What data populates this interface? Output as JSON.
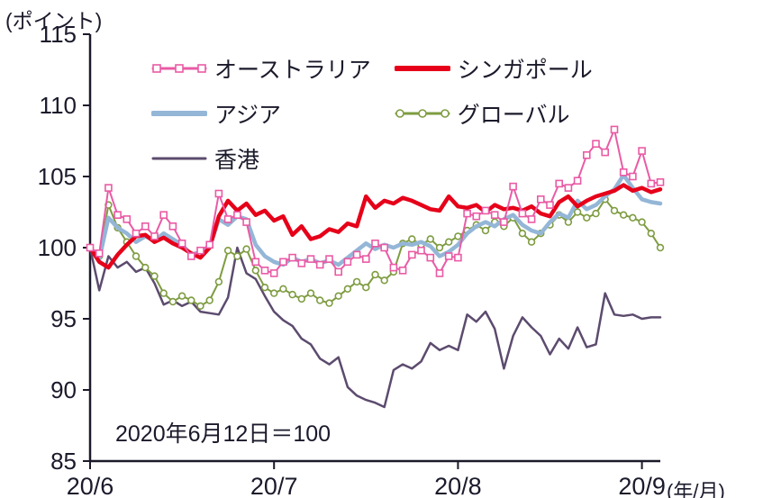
{
  "chart_data": {
    "type": "line",
    "y_unit_label": "(ポイント)",
    "x_unit_label": "(年/月)",
    "annotation": "2020年6月12日＝100",
    "ylim": [
      85,
      115
    ],
    "yticks": [
      85,
      90,
      95,
      100,
      105,
      110,
      115
    ],
    "xticks": [
      {
        "label": "20/6",
        "index": 0
      },
      {
        "label": "20/7",
        "index": 20
      },
      {
        "label": "20/8",
        "index": 40
      },
      {
        "label": "20/9",
        "index": 60
      }
    ],
    "axis_color": "#1a1a2b",
    "text_color": "#1a1a2b",
    "draw_order": [
      4,
      3,
      2,
      1,
      0
    ],
    "series": [
      {
        "name": "オーストラリア",
        "color": "#e95ba5",
        "marker": "square",
        "line_width": 2,
        "values": [
          100,
          99.6,
          104.2,
          102.3,
          102,
          101,
          101.5,
          100.8,
          102.3,
          101.5,
          100.3,
          99.4,
          99.8,
          100.2,
          103.8,
          102,
          102.3,
          101.8,
          99,
          98.4,
          98.2,
          99,
          99.3,
          98.9,
          99.2,
          98.8,
          99.2,
          98.3,
          99,
          99.5,
          99.2,
          100.3,
          100,
          98.6,
          98.4,
          99.5,
          99.8,
          99.3,
          98.2,
          99.4,
          99.3,
          102.4,
          102.2,
          102.6,
          102.3,
          101.8,
          104.3,
          102.4,
          102,
          103.4,
          103,
          104.5,
          104.2,
          104.7,
          106.5,
          107.3,
          106.7,
          108.3,
          105.3,
          105,
          106.8,
          104.5,
          104.6
        ]
      },
      {
        "name": "シンガポール",
        "color": "#e60019",
        "marker": "none",
        "line_width": 4.5,
        "values": [
          100,
          99,
          98.6,
          99.5,
          100.2,
          100.8,
          100.9,
          100.4,
          100.7,
          100.3,
          100,
          99.6,
          99.3,
          100,
          102.2,
          103.3,
          102.6,
          103.1,
          102.3,
          102.6,
          101.9,
          102.2,
          100.9,
          101.5,
          100.6,
          100.8,
          101.3,
          101.1,
          101.7,
          101.5,
          103.6,
          102.8,
          103.3,
          103.1,
          103.5,
          103.3,
          103,
          102.7,
          102.6,
          103.6,
          102.9,
          102.8,
          103,
          102.5,
          103,
          102.7,
          102.8,
          102.6,
          102.9,
          102.4,
          102.2,
          103.2,
          103.6,
          102.9,
          103.3,
          103.6,
          103.8,
          104,
          104.4,
          104,
          104.2,
          103.9,
          104.1
        ]
      },
      {
        "name": "アジア",
        "color": "#94b6d7",
        "marker": "none",
        "line_width": 4.5,
        "values": [
          100,
          99.2,
          102.1,
          101.4,
          101,
          100.4,
          100.8,
          100.5,
          101,
          100.6,
          100.2,
          99.5,
          99.7,
          100,
          102,
          101.6,
          102.2,
          102,
          100.2,
          99.4,
          99,
          98.8,
          99.3,
          99,
          99.2,
          98.9,
          99.1,
          98.8,
          99.3,
          99.8,
          100.3,
          99.9,
          100.2,
          100,
          100.3,
          100.2,
          100.4,
          100.1,
          99.4,
          99.7,
          100.2,
          101,
          101.5,
          101.8,
          101.5,
          102,
          102.3,
          101.6,
          101.2,
          101,
          101.8,
          102.4,
          102.1,
          103.3,
          102.7,
          103,
          103.6,
          104.1,
          105.1,
          104.2,
          103.4,
          103.2,
          103.1
        ]
      },
      {
        "name": "グローバル",
        "color": "#7e9c41",
        "marker": "circle",
        "line_width": 2,
        "values": [
          100,
          99.4,
          103,
          101.4,
          100.4,
          99.4,
          98.6,
          98,
          96.8,
          96.2,
          96.6,
          96.3,
          95.9,
          96.3,
          97.6,
          99.8,
          99.4,
          99.9,
          98.4,
          97.2,
          96.8,
          97.1,
          96.7,
          96.4,
          96.8,
          96.3,
          96.1,
          96.6,
          97.1,
          97.6,
          97.2,
          98.1,
          97.7,
          98.3,
          100.3,
          100.6,
          100.2,
          100.6,
          100,
          100.4,
          100.8,
          101.2,
          101.6,
          101.2,
          101.8,
          101.5,
          102.1,
          101,
          100.4,
          101,
          101.6,
          102.3,
          101.8,
          102.5,
          102.1,
          102.4,
          103.4,
          102.6,
          102.3,
          102.1,
          101.8,
          101,
          100
        ]
      },
      {
        "name": "香港",
        "color": "#5c4b6e",
        "marker": "none",
        "line_width": 2.5,
        "values": [
          100,
          97,
          99.4,
          98.6,
          99,
          98.3,
          98.6,
          97.5,
          96,
          96.3,
          95.9,
          96.2,
          95.5,
          95.4,
          95.3,
          96.5,
          100,
          98.2,
          97.8,
          96.6,
          95.5,
          94.9,
          94.5,
          93.6,
          93.2,
          92.2,
          91.8,
          92.3,
          90.2,
          89.6,
          89.3,
          89.1,
          88.8,
          91.4,
          91.8,
          91.5,
          92,
          93.3,
          92.8,
          93.1,
          92.8,
          95.3,
          94.8,
          95.5,
          94.3,
          91.5,
          93.8,
          95.1,
          94.4,
          93.8,
          92.5,
          93.6,
          92.9,
          94.4,
          93,
          93.2,
          96.8,
          95.3,
          95.2,
          95.3,
          95,
          95.1,
          95.1
        ]
      }
    ]
  }
}
